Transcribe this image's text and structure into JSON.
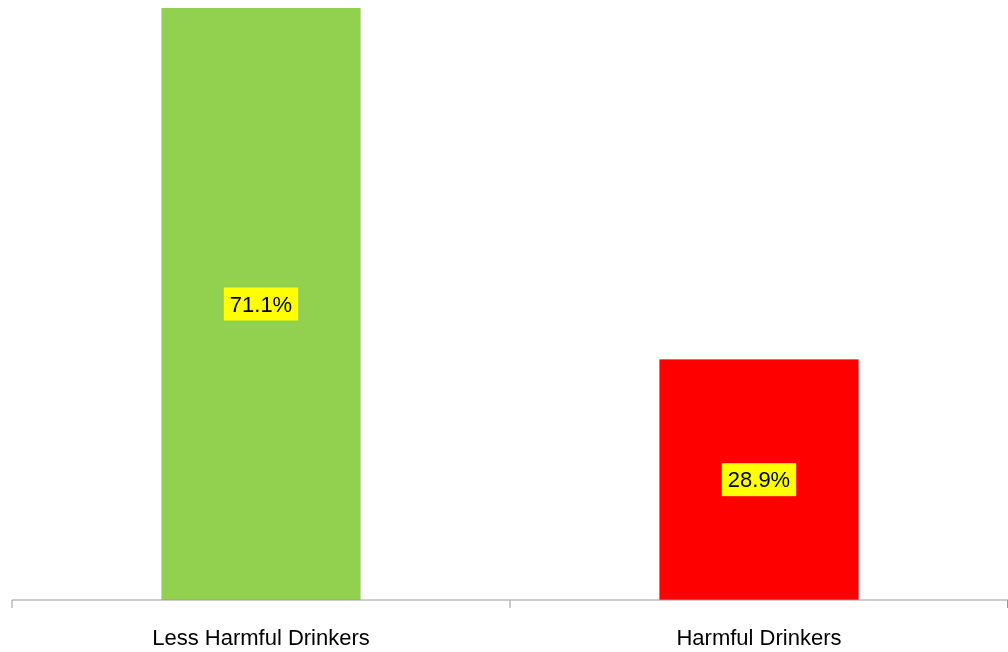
{
  "chart_data": {
    "type": "bar",
    "categories": [
      "Less Harmful Drinkers",
      "Harmful Drinkers"
    ],
    "values": [
      71.1,
      28.9
    ],
    "colors": [
      "#92d050",
      "#ff0000"
    ],
    "value_labels": [
      "71.1%",
      "28.9%"
    ]
  }
}
